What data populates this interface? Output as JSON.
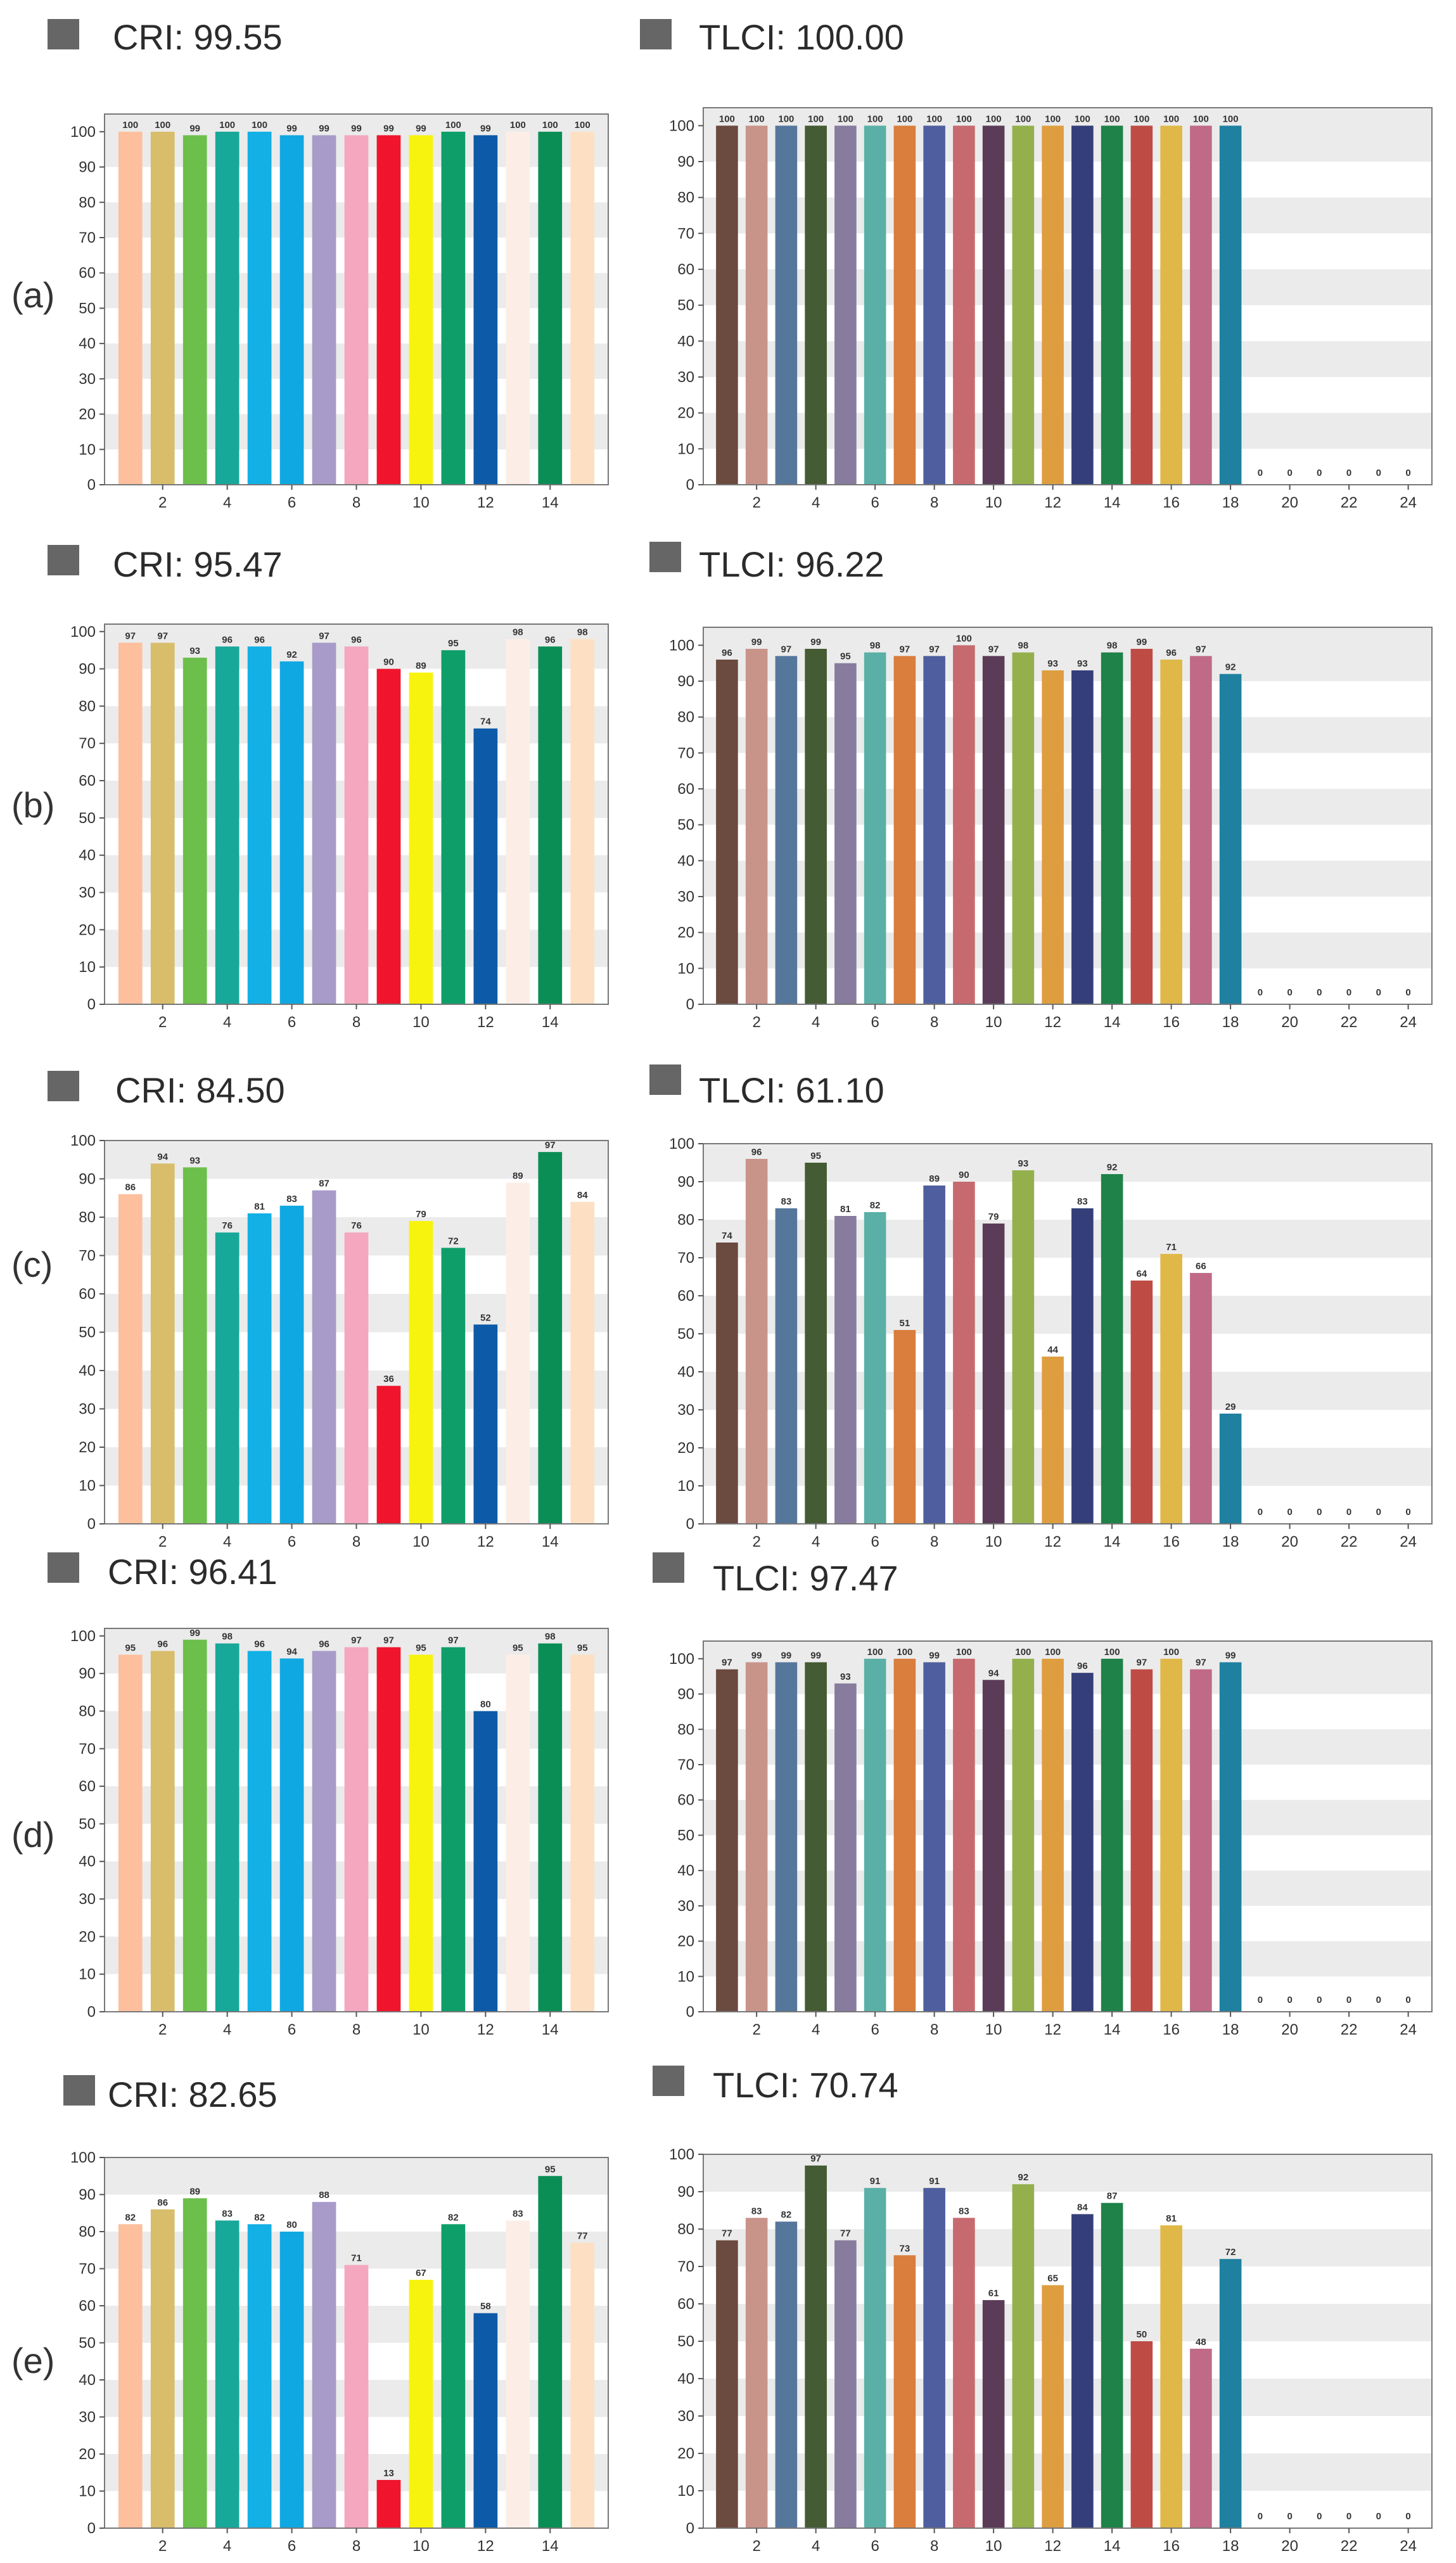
{
  "rows": [
    "(a)",
    "(b)",
    "(c)",
    "(d)",
    "(e)"
  ],
  "palettes": {
    "cri": [
      "#FDBF9C",
      "#D8BD6B",
      "#6CBF4A",
      "#17A89A",
      "#13B0E6",
      "#0FA8E2",
      "#A89BCA",
      "#F4A7BF",
      "#F0152C",
      "#F7F30E",
      "#0E9E6A",
      "#0C5AA8",
      "#FCEEE6",
      "#0A8E55",
      "#FDE0C3"
    ],
    "tlci": [
      "#6B4A3F",
      "#C8948A",
      "#56779C",
      "#445B33",
      "#877C9E",
      "#5AB0A6",
      "#D97E3C",
      "#4F5E9E",
      "#C76A6F",
      "#5A3C58",
      "#94B04D",
      "#DE9E3F",
      "#343F7A",
      "#1E8249",
      "#BE4C45",
      "#DFB848",
      "#C06A88",
      "#1F80A0",
      "#BDBDBD",
      "#BDBDBD",
      "#BDBDBD",
      "#BDBDBD",
      "#BDBDBD",
      "#BDBDBD"
    ]
  },
  "chart_data": [
    {
      "type": "bar",
      "row": "(a)",
      "title": "CRI: 99.55",
      "ylim": [
        0,
        105
      ],
      "yticks": [
        0,
        10,
        20,
        30,
        40,
        50,
        60,
        70,
        80,
        90,
        100
      ],
      "xticks": [
        2,
        4,
        6,
        8,
        10,
        12,
        14
      ],
      "categories": [
        1,
        2,
        3,
        4,
        5,
        6,
        7,
        8,
        9,
        10,
        11,
        12,
        13,
        14,
        15
      ],
      "values": [
        100,
        100,
        99,
        100,
        100,
        99,
        99,
        99,
        99,
        99,
        100,
        99,
        100,
        100,
        100
      ]
    },
    {
      "type": "bar",
      "row": "(a)",
      "title": "TLCI: 100.00",
      "ylim": [
        0,
        105
      ],
      "yticks": [
        0,
        10,
        20,
        30,
        40,
        50,
        60,
        70,
        80,
        90,
        100
      ],
      "xticks": [
        2,
        4,
        6,
        8,
        10,
        12,
        14,
        16,
        18,
        20,
        22,
        24
      ],
      "categories": [
        1,
        2,
        3,
        4,
        5,
        6,
        7,
        8,
        9,
        10,
        11,
        12,
        13,
        14,
        15,
        16,
        17,
        18,
        19,
        20,
        21,
        22,
        23,
        24
      ],
      "values": [
        100,
        100,
        100,
        100,
        100,
        100,
        100,
        100,
        100,
        100,
        100,
        100,
        100,
        100,
        100,
        100,
        100,
        100,
        0,
        0,
        0,
        0,
        0,
        0
      ]
    },
    {
      "type": "bar",
      "row": "(b)",
      "title": "CRI: 95.47",
      "ylim": [
        0,
        102
      ],
      "yticks": [
        0,
        10,
        20,
        30,
        40,
        50,
        60,
        70,
        80,
        90,
        100
      ],
      "xticks": [
        2,
        4,
        6,
        8,
        10,
        12,
        14
      ],
      "categories": [
        1,
        2,
        3,
        4,
        5,
        6,
        7,
        8,
        9,
        10,
        11,
        12,
        13,
        14,
        15
      ],
      "values": [
        97,
        97,
        93,
        96,
        96,
        92,
        97,
        96,
        90,
        89,
        95,
        74,
        98,
        96,
        98
      ]
    },
    {
      "type": "bar",
      "row": "(b)",
      "title": "TLCI: 96.22",
      "ylim": [
        0,
        105
      ],
      "yticks": [
        0,
        10,
        20,
        30,
        40,
        50,
        60,
        70,
        80,
        90,
        100
      ],
      "xticks": [
        2,
        4,
        6,
        8,
        10,
        12,
        14,
        16,
        18,
        20,
        22,
        24
      ],
      "categories": [
        1,
        2,
        3,
        4,
        5,
        6,
        7,
        8,
        9,
        10,
        11,
        12,
        13,
        14,
        15,
        16,
        17,
        18,
        19,
        20,
        21,
        22,
        23,
        24
      ],
      "values": [
        96,
        99,
        97,
        99,
        95,
        98,
        97,
        97,
        100,
        97,
        98,
        93,
        93,
        98,
        99,
        96,
        97,
        92,
        0,
        0,
        0,
        0,
        0,
        0
      ]
    },
    {
      "type": "bar",
      "row": "(c)",
      "title": "CRI: 84.50",
      "ylim": [
        0,
        100
      ],
      "yticks": [
        0,
        10,
        20,
        30,
        40,
        50,
        60,
        70,
        80,
        90,
        100
      ],
      "xticks": [
        2,
        4,
        6,
        8,
        10,
        12,
        14
      ],
      "categories": [
        1,
        2,
        3,
        4,
        5,
        6,
        7,
        8,
        9,
        10,
        11,
        12,
        13,
        14,
        15
      ],
      "values": [
        86,
        94,
        93,
        76,
        81,
        83,
        87,
        76,
        36,
        79,
        72,
        52,
        89,
        97,
        84
      ]
    },
    {
      "type": "bar",
      "row": "(c)",
      "title": "TLCI: 61.10",
      "ylim": [
        0,
        100
      ],
      "yticks": [
        0,
        10,
        20,
        30,
        40,
        50,
        60,
        70,
        80,
        90,
        100
      ],
      "xticks": [
        2,
        4,
        6,
        8,
        10,
        12,
        14,
        16,
        18,
        20,
        22,
        24
      ],
      "categories": [
        1,
        2,
        3,
        4,
        5,
        6,
        7,
        8,
        9,
        10,
        11,
        12,
        13,
        14,
        15,
        16,
        17,
        18,
        19,
        20,
        21,
        22,
        23,
        24
      ],
      "values": [
        74,
        96,
        83,
        95,
        81,
        82,
        51,
        89,
        90,
        79,
        93,
        44,
        83,
        92,
        64,
        71,
        66,
        29,
        0,
        0,
        0,
        0,
        0,
        0
      ]
    },
    {
      "type": "bar",
      "row": "(d)",
      "title": "CRI: 96.41",
      "ylim": [
        0,
        102
      ],
      "yticks": [
        0,
        10,
        20,
        30,
        40,
        50,
        60,
        70,
        80,
        90,
        100
      ],
      "xticks": [
        2,
        4,
        6,
        8,
        10,
        12,
        14
      ],
      "categories": [
        1,
        2,
        3,
        4,
        5,
        6,
        7,
        8,
        9,
        10,
        11,
        12,
        13,
        14,
        15
      ],
      "values": [
        95,
        96,
        99,
        98,
        96,
        94,
        96,
        97,
        97,
        95,
        97,
        80,
        95,
        98,
        95
      ]
    },
    {
      "type": "bar",
      "row": "(d)",
      "title": "TLCI: 97.47",
      "ylim": [
        0,
        105
      ],
      "yticks": [
        0,
        10,
        20,
        30,
        40,
        50,
        60,
        70,
        80,
        90,
        100
      ],
      "xticks": [
        2,
        4,
        6,
        8,
        10,
        12,
        14,
        16,
        18,
        20,
        22,
        24
      ],
      "categories": [
        1,
        2,
        3,
        4,
        5,
        6,
        7,
        8,
        9,
        10,
        11,
        12,
        13,
        14,
        15,
        16,
        17,
        18,
        19,
        20,
        21,
        22,
        23,
        24
      ],
      "values": [
        97,
        99,
        99,
        99,
        93,
        100,
        100,
        99,
        100,
        94,
        100,
        100,
        96,
        100,
        97,
        100,
        97,
        99,
        0,
        0,
        0,
        0,
        0,
        0
      ]
    },
    {
      "type": "bar",
      "row": "(e)",
      "title": "CRI: 82.65",
      "ylim": [
        0,
        100
      ],
      "yticks": [
        0,
        10,
        20,
        30,
        40,
        50,
        60,
        70,
        80,
        90,
        100
      ],
      "xticks": [
        2,
        4,
        6,
        8,
        10,
        12,
        14
      ],
      "categories": [
        1,
        2,
        3,
        4,
        5,
        6,
        7,
        8,
        9,
        10,
        11,
        12,
        13,
        14,
        15
      ],
      "values": [
        82,
        86,
        89,
        83,
        82,
        80,
        88,
        71,
        13,
        67,
        82,
        58,
        83,
        95,
        77
      ]
    },
    {
      "type": "bar",
      "row": "(e)",
      "title": "TLCI: 70.74",
      "ylim": [
        0,
        100
      ],
      "yticks": [
        0,
        10,
        20,
        30,
        40,
        50,
        60,
        70,
        80,
        90,
        100
      ],
      "xticks": [
        2,
        4,
        6,
        8,
        10,
        12,
        14,
        16,
        18,
        20,
        22,
        24
      ],
      "categories": [
        1,
        2,
        3,
        4,
        5,
        6,
        7,
        8,
        9,
        10,
        11,
        12,
        13,
        14,
        15,
        16,
        17,
        18,
        19,
        20,
        21,
        22,
        23,
        24
      ],
      "values": [
        77,
        83,
        82,
        97,
        77,
        91,
        73,
        91,
        83,
        61,
        92,
        65,
        84,
        87,
        50,
        81,
        48,
        72,
        0,
        0,
        0,
        0,
        0,
        0
      ]
    }
  ]
}
